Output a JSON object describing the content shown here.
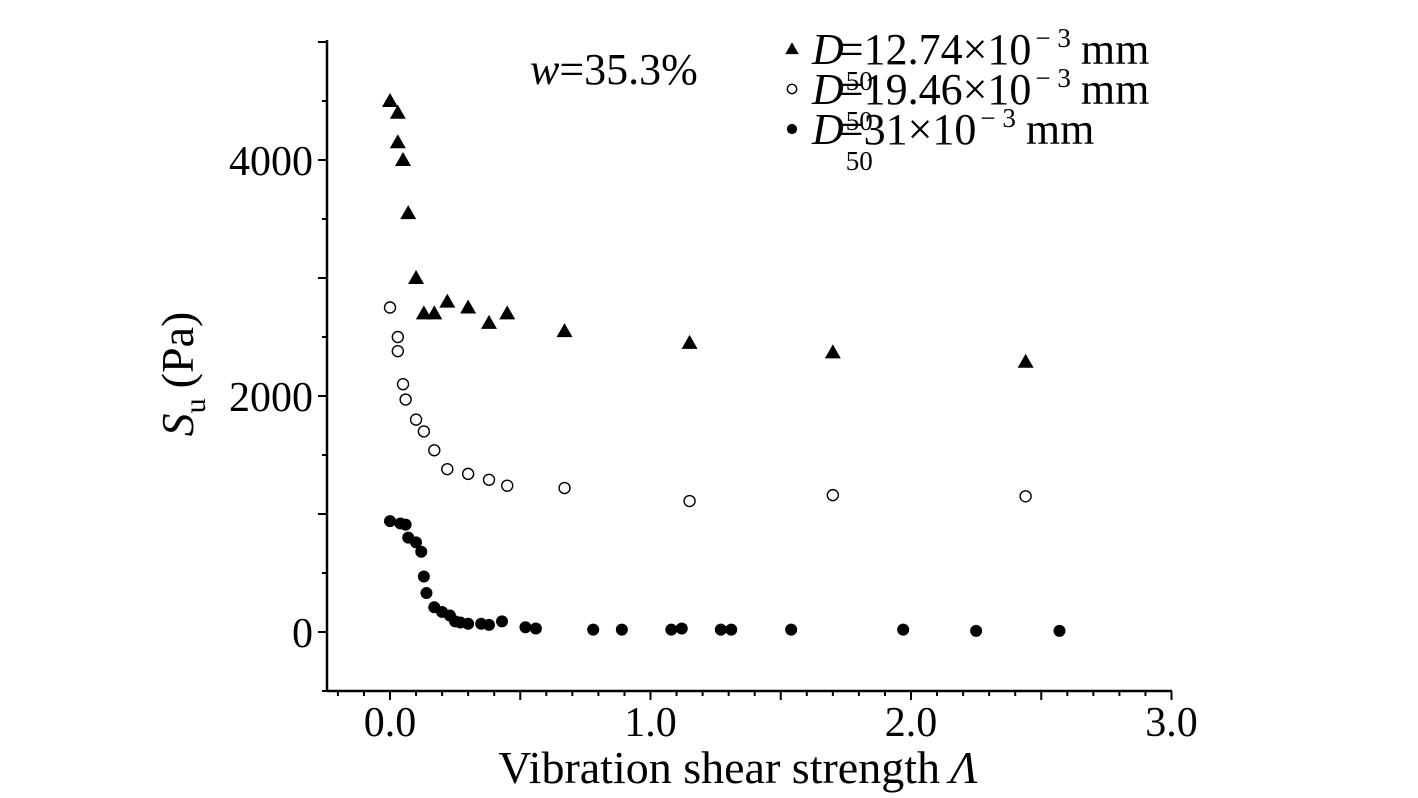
{
  "chart_data": {
    "type": "scatter",
    "xlabel": "Vibration shear strength",
    "xlabel_symbol": "Λ",
    "ylabel_symbol": "S",
    "ylabel_subscript": "u",
    "ylabel_unit": "(Pa)",
    "annotation": {
      "var": "w",
      "text": "=35.3%"
    },
    "xlim": [
      -0.25,
      3.0
    ],
    "ylim": [
      -500,
      5000
    ],
    "xticks": [
      {
        "value": 0.0,
        "label": "0.0"
      },
      {
        "value": 1.0,
        "label": "1.0"
      },
      {
        "value": 2.0,
        "label": "2.0"
      },
      {
        "value": 3.0,
        "label": "3.0"
      }
    ],
    "yticks": [
      {
        "value": 0,
        "label": "0"
      },
      {
        "value": 2000,
        "label": "2000"
      },
      {
        "value": 4000,
        "label": "4000"
      }
    ],
    "legend_position": "top-right",
    "series": [
      {
        "marker": "triangle",
        "legend": {
          "var": "D",
          "sub": "50",
          "value": "=12.74×10",
          "exp": "− 3",
          "unit": "mm"
        },
        "points": [
          [
            0.0,
            4500
          ],
          [
            0.03,
            4400
          ],
          [
            0.03,
            4150
          ],
          [
            0.05,
            4000
          ],
          [
            0.07,
            3550
          ],
          [
            0.1,
            3000
          ],
          [
            0.13,
            2700
          ],
          [
            0.17,
            2700
          ],
          [
            0.22,
            2800
          ],
          [
            0.3,
            2750
          ],
          [
            0.38,
            2620
          ],
          [
            0.45,
            2700
          ],
          [
            0.67,
            2550
          ],
          [
            1.15,
            2450
          ],
          [
            1.7,
            2370
          ],
          [
            2.44,
            2290
          ]
        ]
      },
      {
        "marker": "open-circle",
        "legend": {
          "var": "D",
          "sub": "50",
          "value": "=19.46×10",
          "exp": "− 3",
          "unit": "mm"
        },
        "points": [
          [
            0.0,
            2750
          ],
          [
            0.03,
            2500
          ],
          [
            0.03,
            2380
          ],
          [
            0.05,
            2100
          ],
          [
            0.06,
            1970
          ],
          [
            0.1,
            1800
          ],
          [
            0.13,
            1700
          ],
          [
            0.17,
            1540
          ],
          [
            0.22,
            1380
          ],
          [
            0.3,
            1340
          ],
          [
            0.38,
            1290
          ],
          [
            0.45,
            1240
          ],
          [
            0.67,
            1220
          ],
          [
            1.15,
            1110
          ],
          [
            1.7,
            1160
          ],
          [
            2.44,
            1150
          ]
        ]
      },
      {
        "marker": "filled-circle",
        "legend": {
          "var": "D",
          "sub": "50",
          "value": "=31×10",
          "exp": "− 3",
          "unit": "mm"
        },
        "points": [
          [
            0.0,
            940
          ],
          [
            0.04,
            920
          ],
          [
            0.06,
            910
          ],
          [
            0.07,
            800
          ],
          [
            0.1,
            760
          ],
          [
            0.12,
            680
          ],
          [
            0.13,
            470
          ],
          [
            0.14,
            330
          ],
          [
            0.17,
            210
          ],
          [
            0.2,
            170
          ],
          [
            0.23,
            140
          ],
          [
            0.25,
            90
          ],
          [
            0.27,
            80
          ],
          [
            0.3,
            70
          ],
          [
            0.35,
            70
          ],
          [
            0.38,
            60
          ],
          [
            0.43,
            90
          ],
          [
            0.52,
            40
          ],
          [
            0.56,
            30
          ],
          [
            0.78,
            20
          ],
          [
            0.89,
            20
          ],
          [
            1.08,
            20
          ],
          [
            1.12,
            30
          ],
          [
            1.27,
            20
          ],
          [
            1.31,
            20
          ],
          [
            1.54,
            20
          ],
          [
            1.97,
            20
          ],
          [
            2.25,
            10
          ],
          [
            2.57,
            10
          ]
        ]
      }
    ]
  }
}
